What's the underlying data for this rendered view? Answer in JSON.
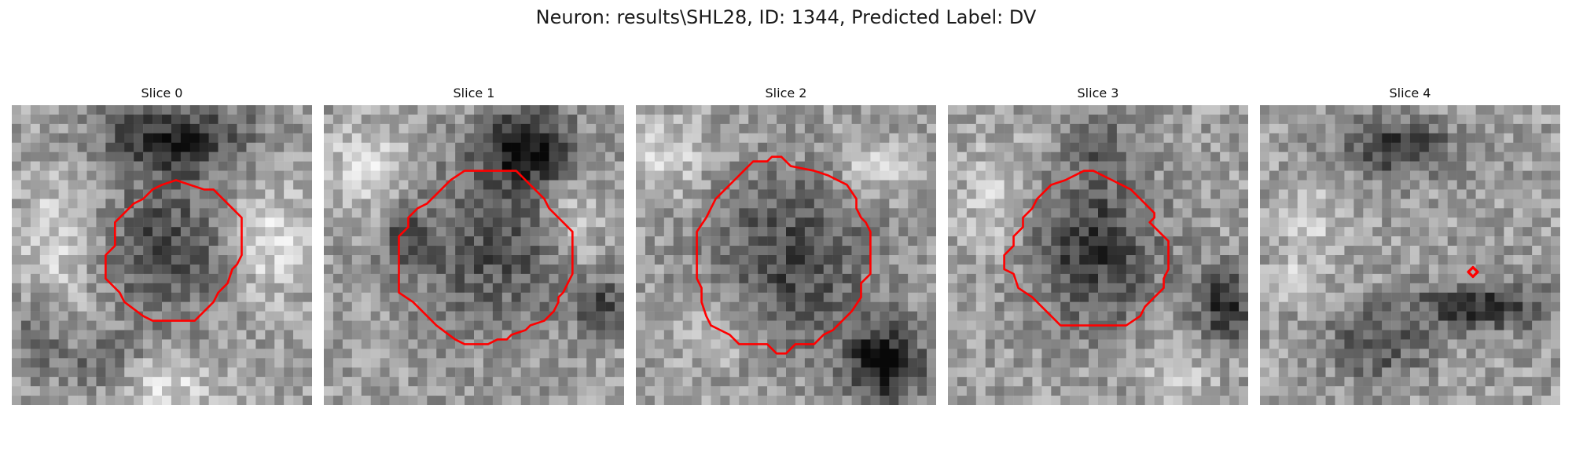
{
  "figure": {
    "title": "Neuron: results\\SHL28, ID: 1344, Predicted Label: DV"
  },
  "panels": [
    {
      "title": "Slice 0"
    },
    {
      "title": "Slice 1"
    },
    {
      "title": "Slice 2"
    },
    {
      "title": "Slice 3"
    },
    {
      "title": "Slice 4"
    }
  ],
  "colors": {
    "contour": "#ff0000",
    "colormap": "grayscale"
  }
}
